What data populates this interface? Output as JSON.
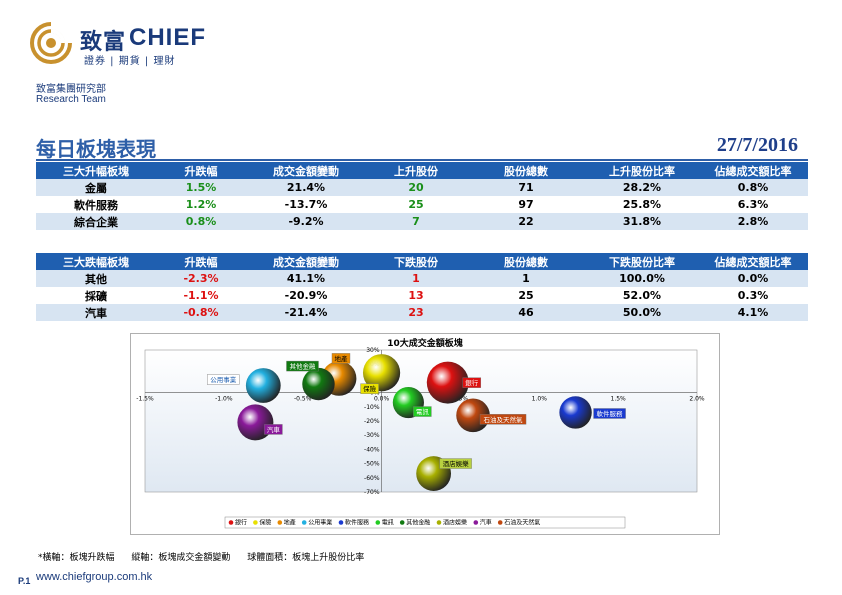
{
  "header": {
    "brand_cn": "致富",
    "brand_en": "CHIEF",
    "brand_sub": "證券 | 期貨 | 理財",
    "dept_cn": "致富集團研究部",
    "dept_en": "Research Team",
    "logo_icon": "swirl-logo-icon",
    "brand_color": "#1a3a7a",
    "logo_color": "#c8912e"
  },
  "page": {
    "title": "每日板塊表現",
    "date": "27/7/2016"
  },
  "rising_table": {
    "headers": [
      "三大升幅板塊",
      "升跌幅",
      "成交金額變動",
      "上升股份",
      "股份總數",
      "上升股份比率",
      "佔總成交額比率"
    ],
    "rows": [
      [
        "金屬",
        "1.5%",
        "21.4%",
        "20",
        "71",
        "28.2%",
        "0.8%"
      ],
      [
        "軟件服務",
        "1.2%",
        "-13.7%",
        "25",
        "97",
        "25.8%",
        "6.3%"
      ],
      [
        "綜合企業",
        "0.8%",
        "-9.2%",
        "7",
        "22",
        "31.8%",
        "2.8%"
      ]
    ]
  },
  "falling_table": {
    "headers": [
      "三大跌幅板塊",
      "升跌幅",
      "成交金額變動",
      "下跌股份",
      "股份總數",
      "下跌股份比率",
      "佔總成交額比率"
    ],
    "rows": [
      [
        "其他",
        "-2.3%",
        "41.1%",
        "1",
        "1",
        "100.0%",
        "0.0%"
      ],
      [
        "採礦",
        "-1.1%",
        "-20.9%",
        "13",
        "25",
        "52.0%",
        "0.3%"
      ],
      [
        "汽車",
        "-0.8%",
        "-21.4%",
        "23",
        "46",
        "50.0%",
        "4.1%"
      ]
    ]
  },
  "chart_data": {
    "type": "scatter",
    "title": "10大成交金額板塊",
    "xlim": [
      -1.5,
      2.0
    ],
    "ylim": [
      -70,
      30
    ],
    "x_ticks": [
      "-1.5%",
      "-1.0%",
      "-0.5%",
      "0.0%",
      "0.5%",
      "1.0%",
      "1.5%",
      "2.0%"
    ],
    "y_ticks": [
      "30%",
      "20%",
      "10%",
      "0%",
      "-10%",
      "-20%",
      "-30%",
      "-40%",
      "-50%",
      "-60%",
      "-70%"
    ],
    "grid": false,
    "legend_position": "bottom",
    "series": [
      {
        "name": "銀行",
        "x": 0.42,
        "y": 7,
        "size": 1.0,
        "color": "#dd1111"
      },
      {
        "name": "保險",
        "x": 0.0,
        "y": 14,
        "size": 0.8,
        "color": "#e8e000"
      },
      {
        "name": "地產",
        "x": -0.27,
        "y": 10,
        "size": 0.7,
        "color": "#e88a00"
      },
      {
        "name": "公用事業",
        "x": -0.75,
        "y": 5,
        "size": 0.7,
        "color": "#22b0e0"
      },
      {
        "name": "軟件服務",
        "x": 1.23,
        "y": -14,
        "size": 0.6,
        "color": "#1a3ad0"
      },
      {
        "name": "電訊",
        "x": 0.17,
        "y": -7,
        "size": 0.55,
        "color": "#22cc22"
      },
      {
        "name": "其他金融",
        "x": -0.4,
        "y": 6,
        "size": 0.6,
        "color": "#117a11"
      },
      {
        "name": "酒店娛樂",
        "x": 0.33,
        "y": -57,
        "size": 0.7,
        "color": "#a8b000"
      },
      {
        "name": "汽車",
        "x": -0.8,
        "y": -21,
        "size": 0.75,
        "color": "#8a1a9a"
      },
      {
        "name": "石油及天然氣",
        "x": 0.58,
        "y": -16,
        "size": 0.65,
        "color": "#c04810"
      }
    ],
    "label_bg": {
      "銀行": "#dd1111",
      "保險": "#e8e000",
      "地產": "#e88a00",
      "公用事業": "#ffffff",
      "軟件服務": "#1a3ad0",
      "電訊": "#22cc22",
      "其他金融": "#117a11",
      "酒店娛樂": "#b8d040",
      "汽車": "#8a1a9a",
      "石油及天然氣": "#c04810"
    },
    "label_fg": {
      "銀行": "#ffffff",
      "保險": "#000000",
      "地產": "#000000",
      "公用事業": "#1f5fb0",
      "軟件服務": "#ffffff",
      "電訊": "#ffffff",
      "其他金融": "#ffffff",
      "酒店娛樂": "#000000",
      "汽車": "#ffffff",
      "石油及天然氣": "#ffffff"
    }
  },
  "footnote": {
    "x_axis": "*橫軸：板塊升跌幅",
    "y_axis": "縱軸：板塊成交金額變動",
    "bubble": "球體面積：板塊上升股份比率"
  },
  "footer": {
    "page_num": "P.1",
    "website": "www.chiefgroup.com.hk"
  }
}
